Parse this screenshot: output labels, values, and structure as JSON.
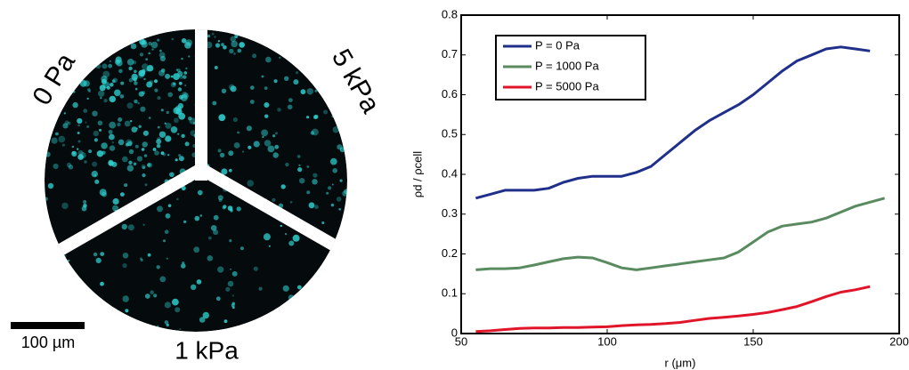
{
  "image_panel": {
    "labels": [
      "0 Pa",
      "5 kPa",
      "1 kPa"
    ],
    "scale_bar": "100 µm"
  },
  "chart_data": {
    "type": "line",
    "x_label": "r (μm)",
    "y_label": "ρd / ρcell",
    "x": [
      55,
      60,
      65,
      70,
      75,
      80,
      85,
      90,
      95,
      100,
      105,
      110,
      115,
      120,
      125,
      130,
      135,
      140,
      145,
      150,
      155,
      160,
      165,
      170,
      175,
      180,
      185,
      190,
      195
    ],
    "series": [
      {
        "name": "P = 0 Pa",
        "color": "#1f2f8a",
        "values": [
          0.34,
          0.35,
          0.36,
          0.36,
          0.36,
          0.365,
          0.38,
          0.39,
          0.395,
          0.395,
          0.395,
          0.405,
          0.42,
          0.45,
          0.48,
          0.51,
          0.535,
          0.555,
          0.575,
          0.6,
          0.63,
          0.66,
          0.685,
          0.7,
          0.715,
          0.72,
          0.715,
          0.71,
          null
        ]
      },
      {
        "name": "P = 1000 Pa",
        "color": "#5a8a60",
        "values": [
          0.16,
          0.163,
          0.163,
          0.165,
          0.172,
          0.18,
          0.188,
          0.192,
          0.19,
          0.178,
          0.165,
          0.16,
          0.165,
          0.17,
          0.175,
          0.18,
          0.185,
          0.19,
          0.205,
          0.23,
          0.255,
          0.27,
          0.275,
          0.28,
          0.29,
          0.305,
          0.32,
          0.33,
          0.34
        ]
      },
      {
        "name": "P = 5000 Pa",
        "color": "#e0152a",
        "values": [
          0.005,
          0.007,
          0.01,
          0.013,
          0.014,
          0.014,
          0.015,
          0.015,
          0.016,
          0.017,
          0.02,
          0.022,
          0.023,
          0.025,
          0.028,
          0.033,
          0.038,
          0.041,
          0.044,
          0.048,
          0.053,
          0.06,
          0.068,
          0.08,
          0.093,
          0.104,
          0.11,
          0.118,
          null
        ]
      }
    ],
    "xlim": [
      50,
      200
    ],
    "xticks": [
      50,
      100,
      150,
      200
    ],
    "ylim": [
      0,
      0.8
    ],
    "yticks": [
      0,
      0.1,
      0.2,
      0.3,
      0.4,
      0.5,
      0.6,
      0.7,
      0.8
    ],
    "legend": "upper left"
  }
}
